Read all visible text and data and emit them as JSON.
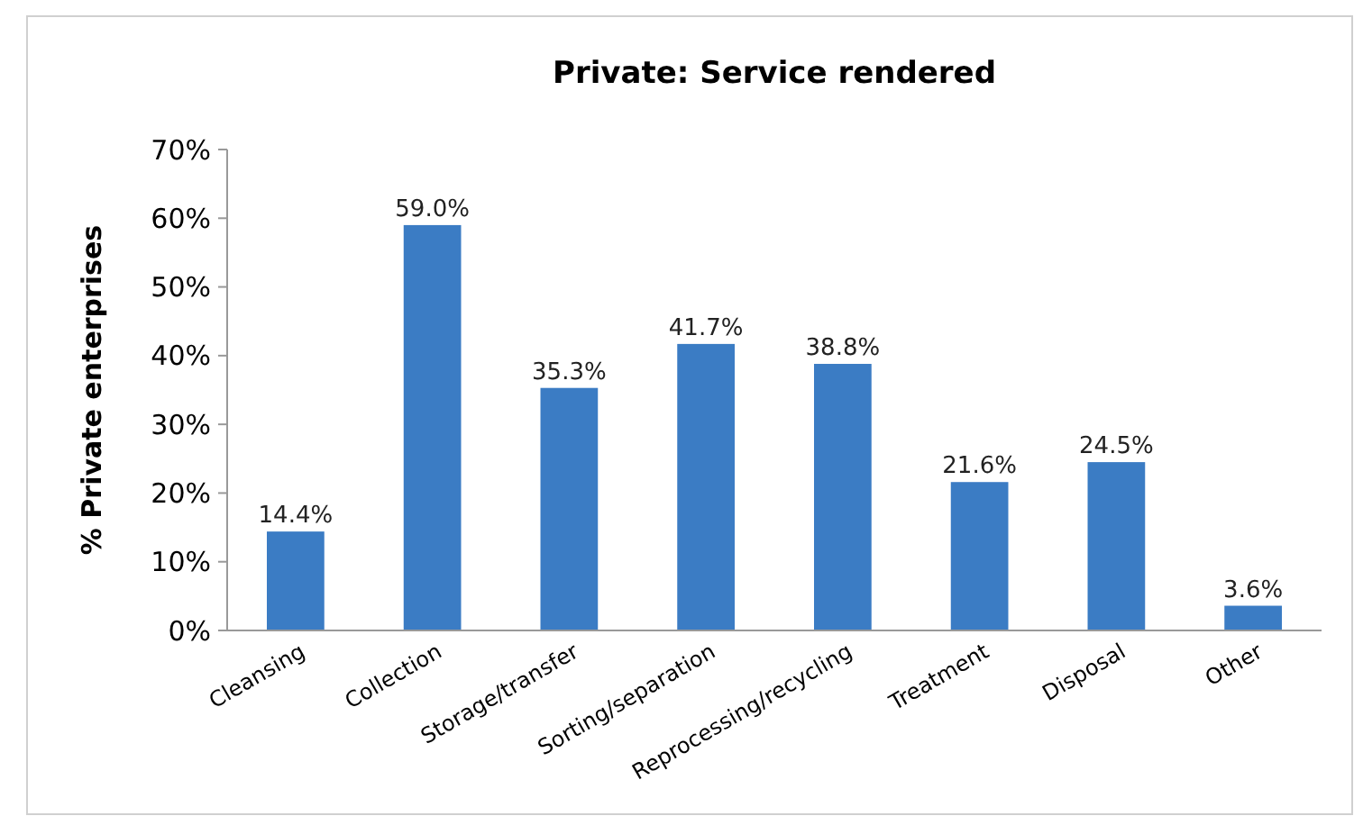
{
  "chart_data": {
    "type": "bar",
    "title": "Private: Service rendered",
    "ylabel": "% Private enterprises",
    "categories": [
      "Cleansing",
      "Collection",
      "Storage/transfer",
      "Sorting/separation",
      "Reprocessing/recycling",
      "Treatment",
      "Disposal",
      "Other"
    ],
    "values": [
      14.4,
      59.0,
      35.3,
      41.7,
      38.8,
      21.6,
      24.5,
      3.6
    ],
    "value_labels": [
      "14.4%",
      "59.0%",
      "35.3%",
      "41.7%",
      "38.8%",
      "21.6%",
      "24.5%",
      "3.6%"
    ],
    "color": "#3b7cc4",
    "ylim": [
      0,
      70
    ],
    "yticks": [
      {
        "value": 0,
        "label": "0%"
      },
      {
        "value": 10,
        "label": "10%"
      },
      {
        "value": 20,
        "label": "20%"
      },
      {
        "value": 30,
        "label": "30%"
      },
      {
        "value": 40,
        "label": "40%"
      },
      {
        "value": 50,
        "label": "50%"
      },
      {
        "value": 60,
        "label": "60%"
      },
      {
        "value": 70,
        "label": "70%"
      }
    ],
    "grid": false
  }
}
